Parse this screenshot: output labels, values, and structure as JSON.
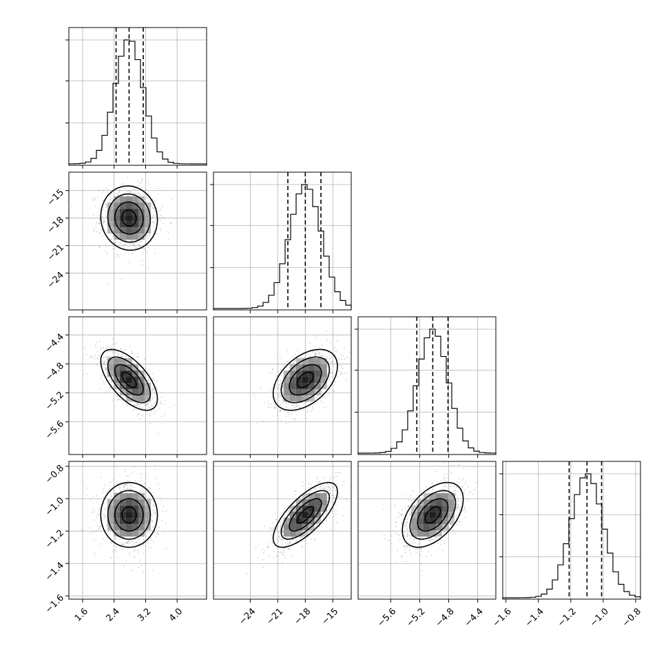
{
  "chart_data": {
    "type": "corner",
    "title": "",
    "grid": true,
    "parameters": [
      {
        "index": 0,
        "range": [
          1.25,
          4.75
        ],
        "ticks": [
          1.6,
          2.4,
          3.2,
          4.0
        ],
        "tick_labels": [
          "1.6",
          "2.4",
          "3.2",
          "4.0"
        ],
        "mean": 2.78,
        "sigma": 0.36,
        "quantiles": [
          2.45,
          2.78,
          3.14
        ]
      },
      {
        "index": 1,
        "range": [
          -28.0,
          -13.0
        ],
        "ticks": [
          -24,
          -21,
          -18,
          -15
        ],
        "tick_labels": [
          "−24",
          "−21",
          "−18",
          "−15"
        ],
        "mean": -18.0,
        "sigma": 1.75,
        "quantiles": [
          -19.9,
          -18.0,
          -16.3
        ]
      },
      {
        "index": 2,
        "range": [
          -6.05,
          -4.15
        ],
        "ticks": [
          -5.6,
          -5.2,
          -4.8,
          -4.4
        ],
        "tick_labels": [
          "−5.6",
          "−5.2",
          "−4.8",
          "−4.4"
        ],
        "mean": -5.02,
        "sigma": 0.21,
        "quantiles": [
          -5.24,
          -5.02,
          -4.81
        ]
      },
      {
        "index": 3,
        "range": [
          -1.62,
          -0.77
        ],
        "ticks": [
          -1.6,
          -1.4,
          -1.2,
          -1.0,
          -0.8
        ],
        "tick_labels": [
          "−1.6",
          "−1.4",
          "−1.2",
          "−1.0",
          "−0.8"
        ],
        "mean": -1.1,
        "sigma": 0.1,
        "quantiles": [
          -1.21,
          -1.1,
          -1.01
        ]
      }
    ],
    "correlations": {
      "1-0": -0.05,
      "2-0": -0.62,
      "2-1": 0.45,
      "3-0": 0.0,
      "3-1": 0.72,
      "3-2": 0.48
    },
    "contour_levels_sigma": [
      0.5,
      1.0,
      1.5,
      2.0
    ],
    "colors": {
      "line": "#000000",
      "points": "#999999",
      "grid": "#b0b0b0"
    }
  }
}
